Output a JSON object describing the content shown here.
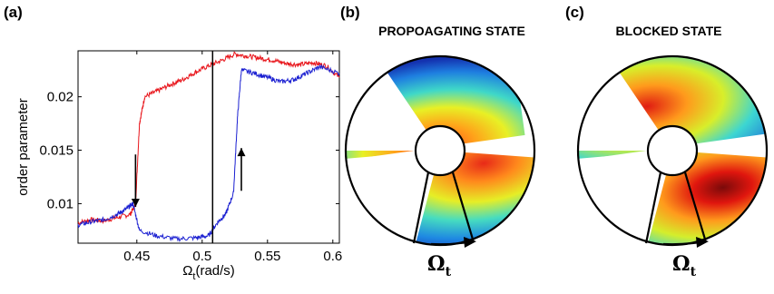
{
  "panels": {
    "a": {
      "label": "(a)"
    },
    "b": {
      "label": "(b)",
      "title": "PROPOAGATING STATE",
      "omega": "Ω",
      "omega_sub": "t"
    },
    "c": {
      "label": "(c)",
      "title": "BLOCKED STATE",
      "omega": "Ω",
      "omega_sub": "t"
    }
  },
  "chart_data": {
    "type": "line",
    "xlabel_main": "Ω",
    "xlabel_sub": "t",
    "xlabel_unit": "(rad/s)",
    "ylabel": "order parameter",
    "xlim": [
      0.405,
      0.605
    ],
    "ylim": [
      0.0063,
      0.0243
    ],
    "xticks": [
      0.45,
      0.5,
      0.55,
      0.6
    ],
    "xtick_labels": [
      "0.45",
      "0.5",
      "0.55",
      "0.6"
    ],
    "yticks": [
      0.01,
      0.015,
      0.02
    ],
    "ytick_labels": [
      "0.01",
      "0.015",
      "0.02"
    ],
    "vline_x": 0.508,
    "series": [
      {
        "color": "#e8141a",
        "points": [
          [
            0.405,
            0.0082
          ],
          [
            0.415,
            0.0085
          ],
          [
            0.425,
            0.0084
          ],
          [
            0.435,
            0.0087
          ],
          [
            0.445,
            0.009
          ],
          [
            0.449,
            0.01
          ],
          [
            0.452,
            0.0175
          ],
          [
            0.456,
            0.02
          ],
          [
            0.465,
            0.0205
          ],
          [
            0.475,
            0.0211
          ],
          [
            0.485,
            0.0216
          ],
          [
            0.495,
            0.0223
          ],
          [
            0.505,
            0.0229
          ],
          [
            0.515,
            0.0234
          ],
          [
            0.525,
            0.024
          ],
          [
            0.535,
            0.0238
          ],
          [
            0.545,
            0.0236
          ],
          [
            0.555,
            0.0234
          ],
          [
            0.565,
            0.0231
          ],
          [
            0.575,
            0.023
          ],
          [
            0.585,
            0.0232
          ],
          [
            0.595,
            0.0229
          ],
          [
            0.605,
            0.0218
          ]
        ]
      },
      {
        "color": "#1a1fd1",
        "points": [
          [
            0.405,
            0.008
          ],
          [
            0.415,
            0.0083
          ],
          [
            0.425,
            0.0085
          ],
          [
            0.435,
            0.009
          ],
          [
            0.442,
            0.0095
          ],
          [
            0.447,
            0.01
          ],
          [
            0.452,
            0.0075
          ],
          [
            0.465,
            0.007
          ],
          [
            0.48,
            0.0067
          ],
          [
            0.495,
            0.0068
          ],
          [
            0.505,
            0.007
          ],
          [
            0.512,
            0.0083
          ],
          [
            0.518,
            0.009
          ],
          [
            0.524,
            0.011
          ],
          [
            0.527,
            0.018
          ],
          [
            0.53,
            0.0225
          ],
          [
            0.54,
            0.0222
          ],
          [
            0.55,
            0.0218
          ],
          [
            0.56,
            0.0214
          ],
          [
            0.57,
            0.0216
          ],
          [
            0.58,
            0.0222
          ],
          [
            0.59,
            0.0228
          ],
          [
            0.605,
            0.0222
          ]
        ]
      }
    ],
    "annotations": [
      {
        "type": "arrow-down",
        "x": 0.449,
        "y_from": 0.0146,
        "y_to": 0.0097
      },
      {
        "type": "arrow-up",
        "x": 0.53,
        "y_from": 0.0112,
        "y_to": 0.0152
      }
    ]
  },
  "colors": {
    "red_series": "#e8141a",
    "blue_series": "#1a1fd1",
    "axes": "#000000"
  }
}
